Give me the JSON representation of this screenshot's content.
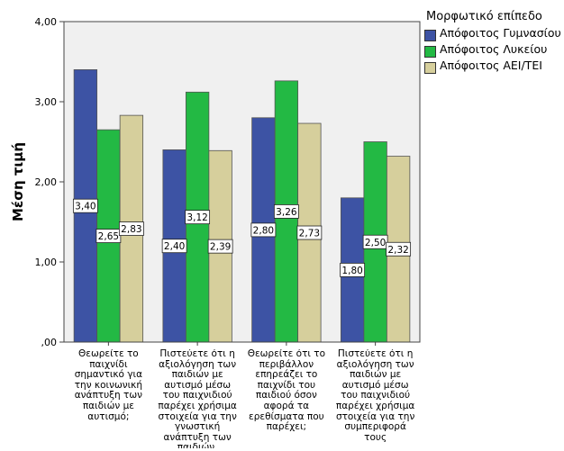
{
  "chart_data": {
    "type": "bar",
    "title": "",
    "xlabel": "",
    "ylabel": "Μέση τιμή",
    "ylim": [
      0,
      4
    ],
    "yticks": [
      ",00",
      "1,00",
      "2,00",
      "3,00",
      "4,00"
    ],
    "grid": false,
    "legend_title": "Μορφωτικό επίπεδο",
    "legend_position": "top-right",
    "categories": [
      "Θεωρείτε το παιχνίδι σημαντικό για την κοινωνική ανάπτυξη των παιδιών με αυτισμό;",
      "Πιστεύετε ότι η αξιολόγηση των παιδιών με αυτισμό μέσω του παιχνιδιού παρέχει χρήσιμα στοιχεία για την γνωστική ανάπτυξη των παιδιών,",
      "Θεωρείτε ότι το περιβάλλον επηρεάζει το παιχνίδι του παιδιού όσον αφορά τα ερεθίσματα που παρέχει;",
      "Πιστεύετε ότι η αξιολόγηση των παιδιών με αυτισμό μέσω του παιχνιδιού παρέχει χρήσιμα στοιχεία για την συμπεριφορά τους"
    ],
    "series": [
      {
        "name": "Απόφοιτος Γυμνασίου",
        "color": "#3d53a4",
        "values": [
          3.4,
          2.4,
          2.8,
          1.8
        ],
        "labels": [
          "3,40",
          "2,40",
          "2,80",
          "1,80"
        ]
      },
      {
        "name": "Απόφοιτος Λυκείου",
        "color": "#23b944",
        "values": [
          2.65,
          3.12,
          3.26,
          2.5
        ],
        "labels": [
          "2,65",
          "3,12",
          "3,26",
          "2,50"
        ]
      },
      {
        "name": "Απόφοιτος ΑΕΙ/ΤΕΙ",
        "color": "#d6cf9c",
        "values": [
          2.83,
          2.39,
          2.73,
          2.32
        ],
        "labels": [
          "2,83",
          "2,39",
          "2,73",
          "2,32"
        ]
      }
    ]
  }
}
